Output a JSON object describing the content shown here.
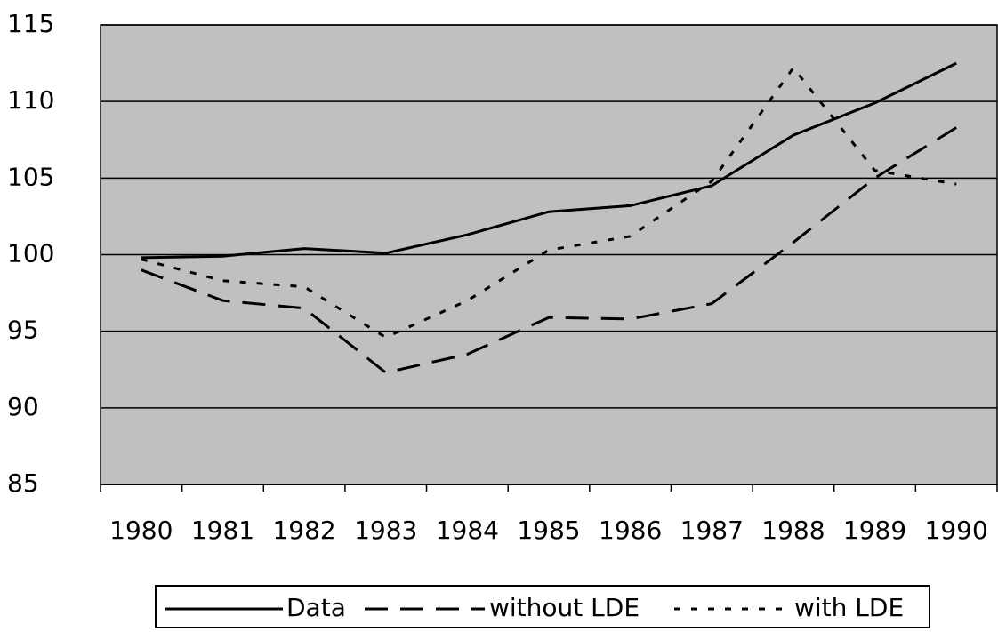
{
  "chart_data": {
    "type": "line",
    "categories": [
      "1980",
      "1981",
      "1982",
      "1983",
      "1984",
      "1985",
      "1986",
      "1987",
      "1988",
      "1989",
      "1990"
    ],
    "series": [
      {
        "name": "Data",
        "color": "#000000",
        "dash": "solid",
        "values": [
          99.8,
          99.9,
          100.4,
          100.1,
          101.3,
          102.8,
          103.2,
          104.5,
          107.8,
          109.9,
          112.5
        ]
      },
      {
        "name": "without LDE",
        "color": "#000000",
        "dash": "dashed",
        "values": [
          99.0,
          97.0,
          96.5,
          92.3,
          93.5,
          95.9,
          95.8,
          96.8,
          100.8,
          105.0,
          108.3
        ]
      },
      {
        "name": "with LDE",
        "color": "#000000",
        "dash": "dotted",
        "values": [
          99.7,
          98.3,
          97.9,
          94.6,
          97.0,
          100.3,
          101.2,
          104.8,
          112.2,
          105.5,
          104.6
        ]
      }
    ],
    "ylim": [
      85,
      115
    ],
    "yticks": [
      85,
      90,
      95,
      100,
      105,
      110,
      115
    ],
    "grid": true,
    "legend": "bottom",
    "background": "#c0c0c0"
  }
}
